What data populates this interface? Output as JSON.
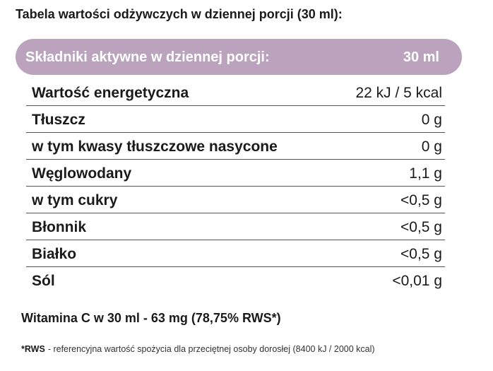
{
  "title": "Tabela wartości odżywczych w dziennej porcji (30 ml):",
  "table": {
    "header": [
      "Składniki aktywne w dziennej porcji:",
      "30 ml"
    ],
    "rows": [
      [
        "Wartość energetyczna",
        "22 kJ / 5 kcal"
      ],
      [
        "Tłuszcz",
        "0 g"
      ],
      [
        "w tym kwasy tłuszczowe nasycone",
        "0 g"
      ],
      [
        "Węglowodany",
        "1,1 g"
      ],
      [
        "w tym cukry",
        "<0,5 g"
      ],
      [
        "Błonnik",
        "<0,5 g"
      ],
      [
        "Białko",
        "<0,5 g"
      ],
      [
        "Sól",
        "<0,01 g"
      ]
    ]
  },
  "vitamin": "Witamina C w 30 ml - 63 mg (78,75% RWS*)",
  "footnote": {
    "term": "*RWS",
    "text": "- referencyjna wartość spożycia dla przeciętnej osoby dorosłej (8400 kJ / 2000 kcal)"
  }
}
